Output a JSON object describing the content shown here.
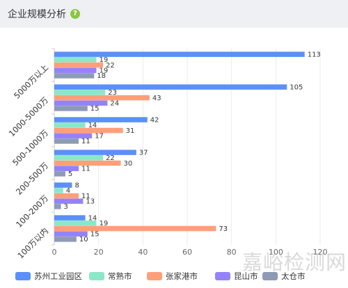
{
  "header": {
    "title": "企业规模分析",
    "help_glyph": "?"
  },
  "watermark": "嘉峪检测网",
  "colors": [
    "#5b8ff9",
    "#8ae8c8",
    "#ff9f7a",
    "#9383fb",
    "#8e9bb5"
  ],
  "chart_data": {
    "type": "bar",
    "orientation": "horizontal",
    "categories": [
      "5000万以上",
      "1000-5000万",
      "500-1000万",
      "200-500万",
      "100-200万",
      "100万以内"
    ],
    "series": [
      {
        "name": "苏州工业园区",
        "values": [
          113,
          105,
          42,
          37,
          8,
          14
        ]
      },
      {
        "name": "常熟市",
        "values": [
          19,
          23,
          14,
          22,
          4,
          19
        ]
      },
      {
        "name": "张家港市",
        "values": [
          22,
          43,
          31,
          30,
          11,
          73
        ]
      },
      {
        "name": "昆山市",
        "values": [
          19,
          24,
          17,
          11,
          13,
          15
        ]
      },
      {
        "name": "太仓市",
        "values": [
          18,
          15,
          11,
          5,
          3,
          10
        ]
      }
    ],
    "xlim": [
      0,
      120
    ],
    "xticks": [
      0,
      20,
      40,
      60,
      80,
      100,
      120
    ],
    "grid": true,
    "legend_position": "bottom"
  }
}
